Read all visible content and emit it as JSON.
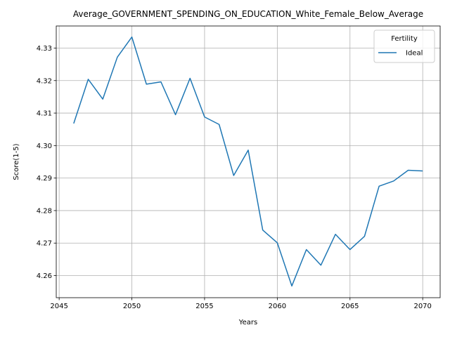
{
  "chart_data": {
    "type": "line",
    "title": "Average_GOVERNMENT_SPENDING_ON_EDUCATION_White_Female_Below_Average",
    "xlabel": "Years",
    "ylabel": "Score(1-5)",
    "xlim": [
      2044.8,
      2071.2
    ],
    "ylim": [
      4.2532,
      4.3368
    ],
    "xticks": [
      2045,
      2050,
      2055,
      2060,
      2065,
      2070
    ],
    "yticks": [
      4.26,
      4.27,
      4.28,
      4.29,
      4.3,
      4.31,
      4.32,
      4.33
    ],
    "ytick_labels": [
      "4.26",
      "4.27",
      "4.28",
      "4.29",
      "4.30",
      "4.31",
      "4.32",
      "4.33"
    ],
    "grid": true,
    "legend": {
      "title": "Fertility",
      "placement": "top-right"
    },
    "series": [
      {
        "name": "Ideal",
        "color": "#1f77b4",
        "x": [
          2046,
          2047,
          2048,
          2049,
          2050,
          2051,
          2052,
          2053,
          2054,
          2055,
          2056,
          2057,
          2058,
          2059,
          2060,
          2061,
          2062,
          2063,
          2064,
          2065,
          2066,
          2067,
          2068,
          2069,
          2070
        ],
        "y": [
          4.3068,
          4.3204,
          4.3143,
          4.3272,
          4.3334,
          4.3189,
          4.3196,
          4.3095,
          4.3207,
          4.3088,
          4.3065,
          4.2908,
          4.2986,
          4.274,
          4.2701,
          4.2568,
          4.268,
          4.2632,
          4.2727,
          4.268,
          4.2721,
          4.2875,
          4.2891,
          4.2924,
          4.2922
        ]
      }
    ]
  }
}
